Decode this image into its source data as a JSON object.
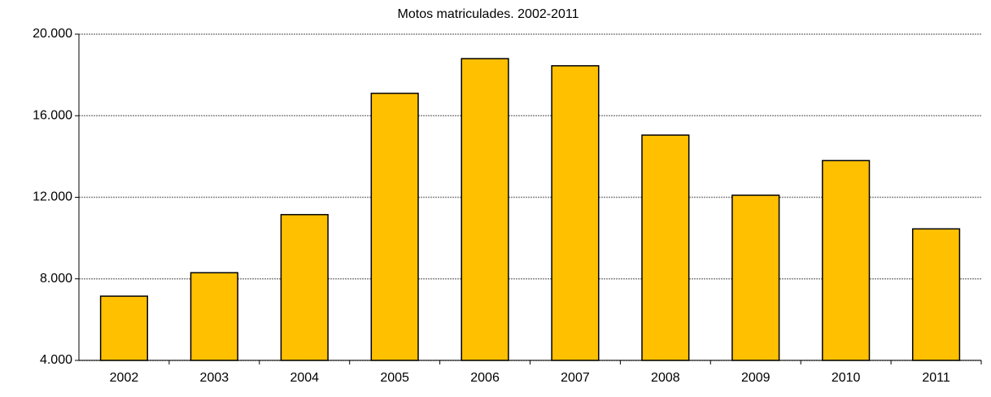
{
  "chart_data": {
    "type": "bar",
    "title": "Motos matriculades. 2002-2011",
    "categories": [
      "2002",
      "2003",
      "2004",
      "2005",
      "2006",
      "2007",
      "2008",
      "2009",
      "2010",
      "2011"
    ],
    "values": [
      7150,
      8300,
      11150,
      17100,
      18800,
      18450,
      15050,
      12100,
      13800,
      10450
    ],
    "color": "#ffc000",
    "ylim": [
      4000,
      20000
    ],
    "yticks": [
      {
        "value": 4000,
        "label": "4.000"
      },
      {
        "value": 8000,
        "label": "8.000"
      },
      {
        "value": 12000,
        "label": "12.000"
      },
      {
        "value": 16000,
        "label": "16.000"
      },
      {
        "value": 20000,
        "label": "20.000"
      }
    ],
    "grid": true
  }
}
